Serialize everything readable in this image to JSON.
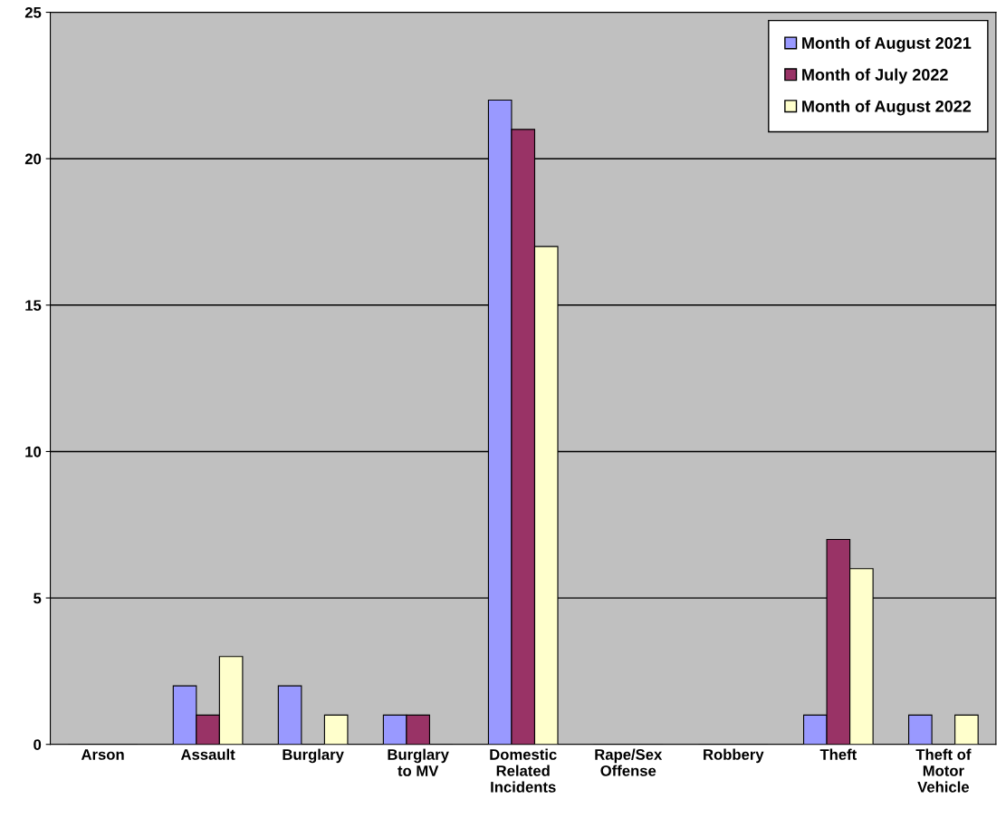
{
  "chart_data": {
    "type": "bar",
    "categories": [
      "Arson",
      "Assault",
      "Burglary",
      "Burglary\nto MV",
      "Domestic\nRelated\nIncidents",
      "Rape/Sex\nOffense",
      "Robbery",
      "Theft",
      "Theft of\nMotor\nVehicle"
    ],
    "series": [
      {
        "name": "Month of August 2021",
        "color": "#9999ff",
        "values": [
          0,
          2,
          2,
          1,
          22,
          0,
          0,
          1,
          1
        ]
      },
      {
        "name": "Month of July 2022",
        "color": "#993366",
        "values": [
          0,
          1,
          0,
          1,
          21,
          0,
          0,
          7,
          0
        ]
      },
      {
        "name": "Month of August 2022",
        "color": "#ffffcc",
        "values": [
          0,
          3,
          1,
          0,
          17,
          0,
          0,
          6,
          1
        ]
      }
    ],
    "ylim": [
      0,
      25
    ],
    "yticks": [
      0,
      5,
      10,
      15,
      20,
      25
    ],
    "grid": "y",
    "legend": "top right"
  }
}
